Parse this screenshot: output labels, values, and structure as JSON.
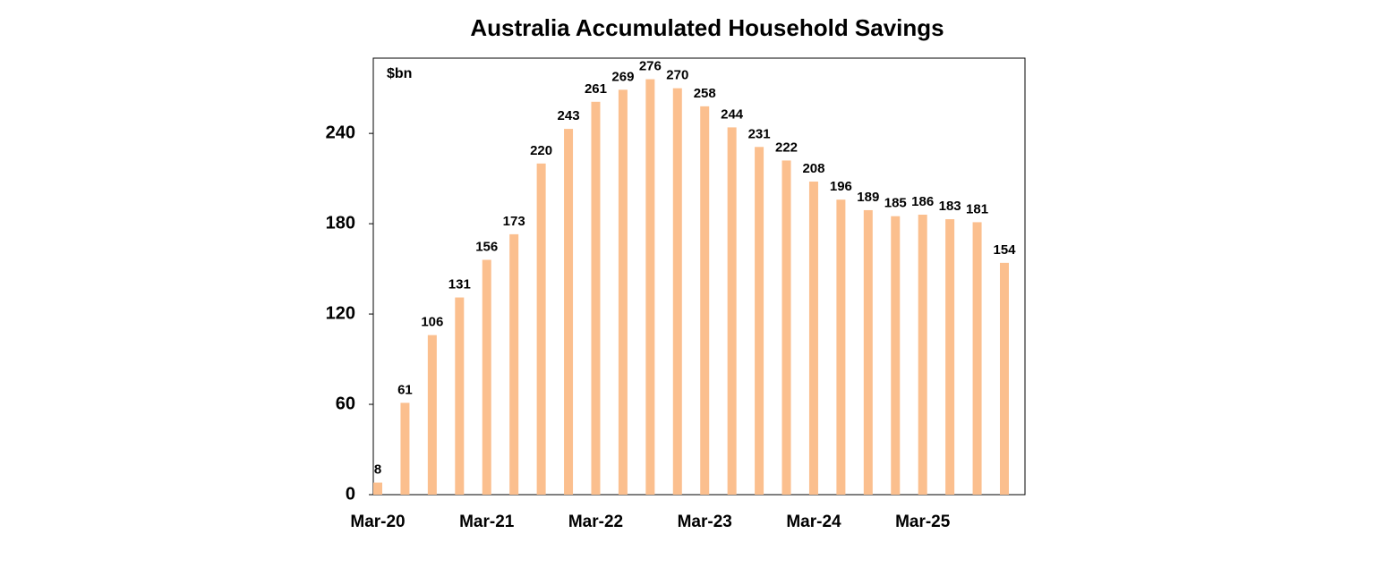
{
  "chart_data": {
    "type": "bar",
    "title": "Australia Accumulated Household Savings",
    "y_label": "$bn",
    "categories": [
      "Mar-20",
      null,
      null,
      null,
      "Mar-21",
      null,
      null,
      null,
      "Mar-22",
      null,
      null,
      null,
      "Mar-23",
      null,
      null,
      null,
      "Mar-24",
      null,
      null,
      null,
      "Mar-25",
      null,
      null,
      null
    ],
    "values": [
      8,
      61,
      106,
      131,
      156,
      173,
      220,
      243,
      261,
      269,
      276,
      270,
      258,
      244,
      231,
      222,
      208,
      196,
      189,
      185,
      186,
      183,
      181,
      154
    ],
    "color": "#fbbf8e",
    "ylim": [
      0,
      290
    ],
    "yticks": [
      0,
      60,
      120,
      180,
      240
    ],
    "grid": false
  }
}
